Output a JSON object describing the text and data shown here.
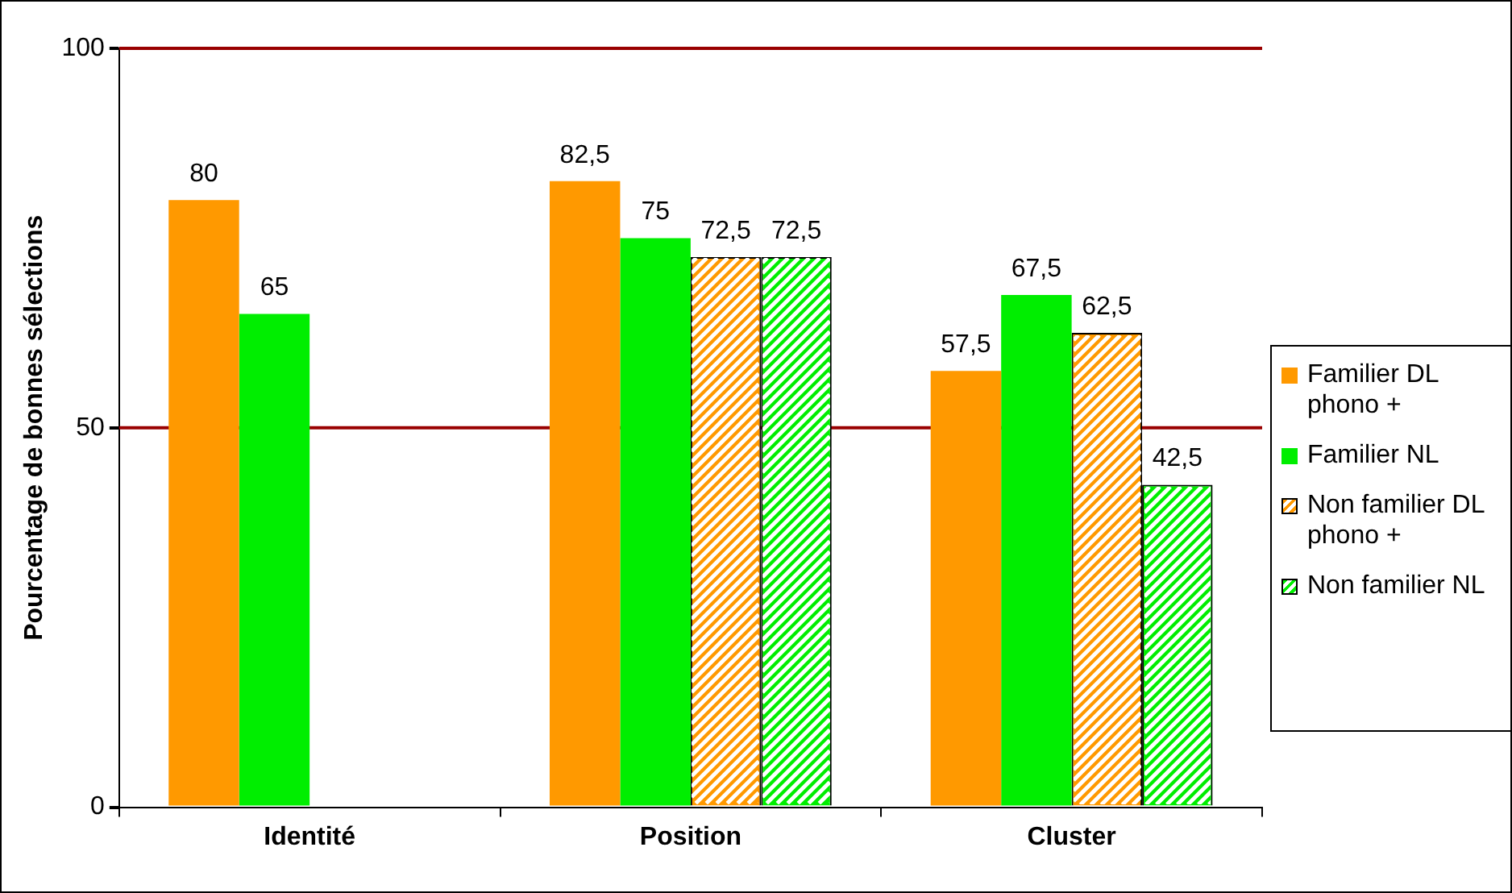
{
  "chart_data": {
    "type": "bar",
    "ylabel": "Pourcentage de bonnes sélections",
    "categories": [
      "Identité",
      "Position",
      "Cluster"
    ],
    "series": [
      {
        "name": "Familier DL phono +",
        "color": "#ff9900",
        "values": [
          80,
          82.5,
          57.5
        ],
        "value_labels": [
          "80",
          "82,5",
          "57,5"
        ]
      },
      {
        "name": "Familier NL",
        "color": "#00ee00",
        "values": [
          65,
          75,
          67.5
        ],
        "value_labels": [
          "65",
          "75",
          "67,5"
        ]
      },
      {
        "name": "Non familier DL phono +",
        "color": "#ff9900",
        "values": [
          null,
          72.5,
          62.5
        ],
        "value_labels": [
          null,
          "72,5",
          "62,5"
        ]
      },
      {
        "name": "Non familier NL",
        "color": "#00ee00",
        "values": [
          null,
          72.5,
          42.5
        ],
        "value_labels": [
          null,
          "72,5",
          "42,5"
        ]
      }
    ],
    "ylim": [
      0,
      100
    ],
    "yticks": [
      0,
      50,
      100
    ],
    "ref_lines": [
      {
        "axis": "y",
        "value": 50,
        "color": "#990000"
      },
      {
        "axis": "y",
        "value": 100,
        "color": "#990000"
      }
    ],
    "legend": "right"
  }
}
